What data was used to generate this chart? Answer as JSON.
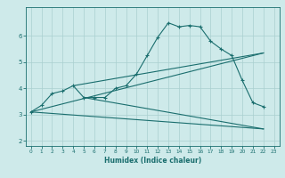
{
  "xlabel": "Humidex (Indice chaleur)",
  "bg_color": "#ceeaea",
  "grid_color": "#aacfcf",
  "line_color": "#1a6e6e",
  "xlim": [
    -0.5,
    23.5
  ],
  "ylim": [
    1.8,
    7.1
  ],
  "xticks": [
    0,
    1,
    2,
    3,
    4,
    5,
    6,
    7,
    8,
    9,
    10,
    11,
    12,
    13,
    14,
    15,
    16,
    17,
    18,
    19,
    20,
    21,
    22,
    23
  ],
  "yticks": [
    2,
    3,
    4,
    5,
    6
  ],
  "line1_x": [
    0,
    1,
    2,
    3,
    4,
    5,
    6,
    7,
    8,
    9,
    10,
    11,
    12,
    13,
    14,
    15,
    16,
    17,
    18,
    19,
    20,
    21,
    22
  ],
  "line1_y": [
    3.1,
    3.35,
    3.8,
    3.9,
    4.1,
    3.65,
    3.65,
    3.65,
    4.0,
    4.1,
    4.55,
    5.25,
    5.95,
    6.5,
    6.35,
    6.4,
    6.35,
    5.8,
    5.5,
    5.25,
    4.3,
    3.45,
    3.3
  ],
  "line2_x": [
    0,
    22
  ],
  "line2_y": [
    3.1,
    5.35
  ],
  "line3_x": [
    0,
    22
  ],
  "line3_y": [
    3.1,
    2.45
  ],
  "line4_x": [
    4,
    22
  ],
  "line4_y": [
    4.1,
    5.35
  ],
  "line5_x": [
    5,
    22
  ],
  "line5_y": [
    3.65,
    2.45
  ]
}
